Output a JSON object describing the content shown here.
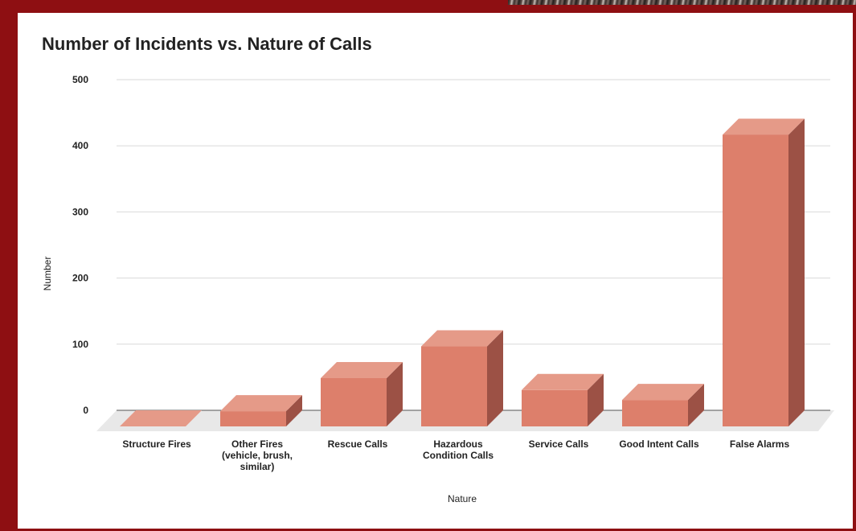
{
  "chart_data": {
    "type": "bar",
    "style": "3d",
    "title": "Number of Incidents vs. Nature of Calls",
    "xlabel": "Nature",
    "ylabel": "Number",
    "ylim": [
      0,
      500
    ],
    "yticks": [
      0,
      100,
      200,
      300,
      400,
      500
    ],
    "grid": true,
    "legend": "none",
    "categories": [
      [
        "Structure Fires"
      ],
      [
        "Other Fires",
        "(vehicle, brush,",
        "similar)"
      ],
      [
        "Rescue Calls"
      ],
      [
        "Hazardous",
        "Condition Calls"
      ],
      [
        "Service Calls"
      ],
      [
        "Good Intent Calls"
      ],
      [
        "False Alarms"
      ]
    ],
    "values": [
      0,
      23,
      73,
      121,
      55,
      40,
      441
    ],
    "colors": {
      "bar_front": "#dd7f6b",
      "bar_top": "#e59a88",
      "bar_side": "#9c5145",
      "floor": "#e8e8e8",
      "frame": "#8e0f12"
    }
  }
}
